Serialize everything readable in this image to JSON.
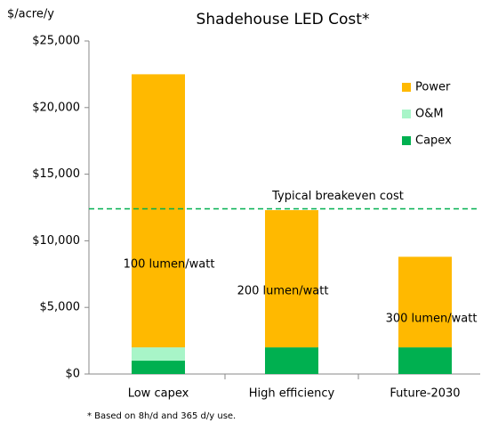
{
  "chart_data": {
    "type": "stacked_bar",
    "title": "Shadehouse LED Cost*",
    "y_label": "$/acre/y",
    "footnote": "* Based on 8h/d and 365 d/y use.",
    "categories": [
      "Low capex",
      "High efficiency",
      "Future-2030"
    ],
    "series": [
      {
        "name": "Capex",
        "color": "#00b050",
        "values": [
          1000,
          2000,
          2000
        ]
      },
      {
        "name": "O&M",
        "color": "#a8f5c8",
        "values": [
          1000,
          0,
          0
        ]
      },
      {
        "name": "Power",
        "color": "#ffb900",
        "values": [
          20500,
          10300,
          6800
        ]
      }
    ],
    "ylim": [
      0,
      25000
    ],
    "yticks": [
      {
        "value": 0,
        "label": "$0"
      },
      {
        "value": 5000,
        "label": "$5,000"
      },
      {
        "value": 10000,
        "label": "$10,000"
      },
      {
        "value": 15000,
        "label": "$15,000"
      },
      {
        "value": 20000,
        "label": "$20,000"
      },
      {
        "value": 25000,
        "label": "$25,000"
      }
    ],
    "reference_line": {
      "value": 12400,
      "label": "Typical breakeven cost",
      "color": "#00b050"
    },
    "annotations": [
      "100 lumen/watt",
      "200 lumen/watt",
      "300 lumen/watt"
    ],
    "legend": "right"
  }
}
